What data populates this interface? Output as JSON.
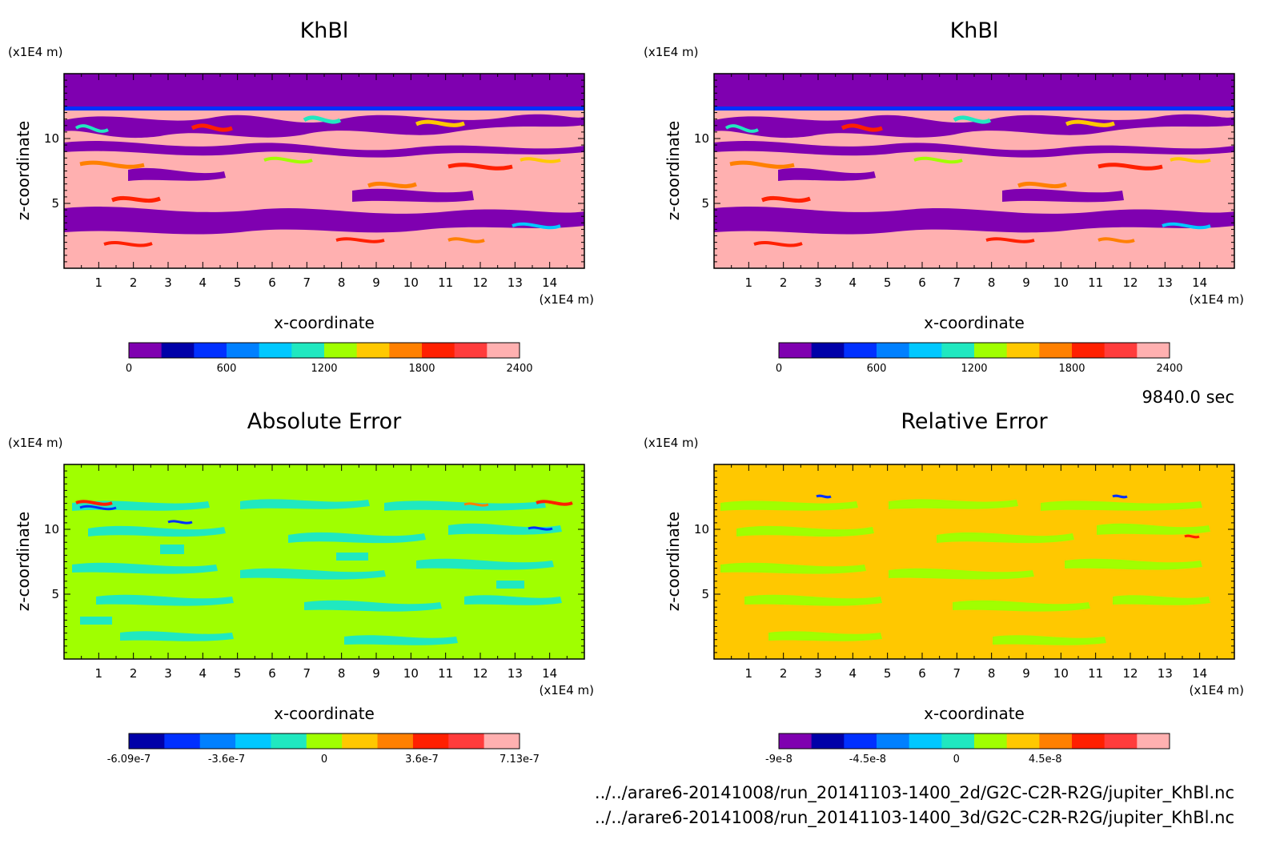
{
  "chart_data": [
    {
      "type": "heatmap",
      "title": "KhBl",
      "xlabel": "x-coordinate",
      "ylabel": "z-coordinate",
      "x_unit": "(x1E4 m)",
      "y_unit": "(x1E4 m)",
      "xlim": [
        0,
        15
      ],
      "ylim": [
        0,
        15
      ],
      "x_ticks": [
        "1",
        "2",
        "3",
        "4",
        "5",
        "6",
        "7",
        "8",
        "9",
        "10",
        "11",
        "12",
        "13",
        "14"
      ],
      "y_ticks": [
        "5",
        "10"
      ],
      "colorbar": {
        "labels": [
          "0",
          "600",
          "1200",
          "1800",
          "2400"
        ],
        "colors": [
          "#7f00b0",
          "#0000a8",
          "#0030ff",
          "#0080ff",
          "#00c8ff",
          "#20e8c0",
          "#a0ff00",
          "#ffc800",
          "#ff8000",
          "#ff2000",
          "#ff3c3c",
          "#ffb0b0"
        ]
      }
    },
    {
      "type": "heatmap",
      "title": "KhBl",
      "xlabel": "x-coordinate",
      "ylabel": "z-coordinate",
      "x_unit": "(x1E4 m)",
      "y_unit": "(x1E4 m)",
      "xlim": [
        0,
        15
      ],
      "ylim": [
        0,
        15
      ],
      "x_ticks": [
        "1",
        "2",
        "3",
        "4",
        "5",
        "6",
        "7",
        "8",
        "9",
        "10",
        "11",
        "12",
        "13",
        "14"
      ],
      "y_ticks": [
        "5",
        "10"
      ],
      "colorbar": {
        "labels": [
          "0",
          "600",
          "1200",
          "1800",
          "2400"
        ],
        "colors": [
          "#7f00b0",
          "#0000a8",
          "#0030ff",
          "#0080ff",
          "#00c8ff",
          "#20e8c0",
          "#a0ff00",
          "#ffc800",
          "#ff8000",
          "#ff2000",
          "#ff3c3c",
          "#ffb0b0"
        ]
      }
    },
    {
      "type": "heatmap",
      "title": "Absolute Error",
      "xlabel": "x-coordinate",
      "ylabel": "z-coordinate",
      "x_unit": "(x1E4 m)",
      "y_unit": "(x1E4 m)",
      "xlim": [
        0,
        15
      ],
      "ylim": [
        0,
        15
      ],
      "x_ticks": [
        "1",
        "2",
        "3",
        "4",
        "5",
        "6",
        "7",
        "8",
        "9",
        "10",
        "11",
        "12",
        "13",
        "14"
      ],
      "y_ticks": [
        "5",
        "10"
      ],
      "colorbar": {
        "labels": [
          "-6.09e-7",
          "-3.6e-7",
          "0",
          "3.6e-7",
          "7.13e-7"
        ],
        "colors": [
          "#0000a8",
          "#0030ff",
          "#0080ff",
          "#00c8ff",
          "#20e8c0",
          "#a0ff00",
          "#ffc800",
          "#ff8000",
          "#ff2000",
          "#ff3c3c",
          "#ffb0b0"
        ]
      }
    },
    {
      "type": "heatmap",
      "title": "Relative Error",
      "xlabel": "x-coordinate",
      "ylabel": "z-coordinate",
      "x_unit": "(x1E4 m)",
      "y_unit": "(x1E4 m)",
      "xlim": [
        0,
        15
      ],
      "ylim": [
        0,
        15
      ],
      "x_ticks": [
        "1",
        "2",
        "3",
        "4",
        "5",
        "6",
        "7",
        "8",
        "9",
        "10",
        "11",
        "12",
        "13",
        "14"
      ],
      "y_ticks": [
        "5",
        "10"
      ],
      "colorbar": {
        "labels": [
          "-9e-8",
          "-4.5e-8",
          "0",
          "4.5e-8"
        ],
        "colors": [
          "#7f00b0",
          "#0000a8",
          "#0030ff",
          "#0080ff",
          "#00c8ff",
          "#20e8c0",
          "#a0ff00",
          "#ffc800",
          "#ff8000",
          "#ff2000",
          "#ff3c3c",
          "#ffb0b0"
        ]
      }
    }
  ],
  "time_label": "9840.0 sec",
  "files": [
    "../../arare6-20141008/run_20141103-1400_2d/G2C-C2R-R2G/jupiter_KhBl.nc",
    "../../arare6-20141008/run_20141103-1400_3d/G2C-C2R-R2G/jupiter_KhBl.nc"
  ]
}
